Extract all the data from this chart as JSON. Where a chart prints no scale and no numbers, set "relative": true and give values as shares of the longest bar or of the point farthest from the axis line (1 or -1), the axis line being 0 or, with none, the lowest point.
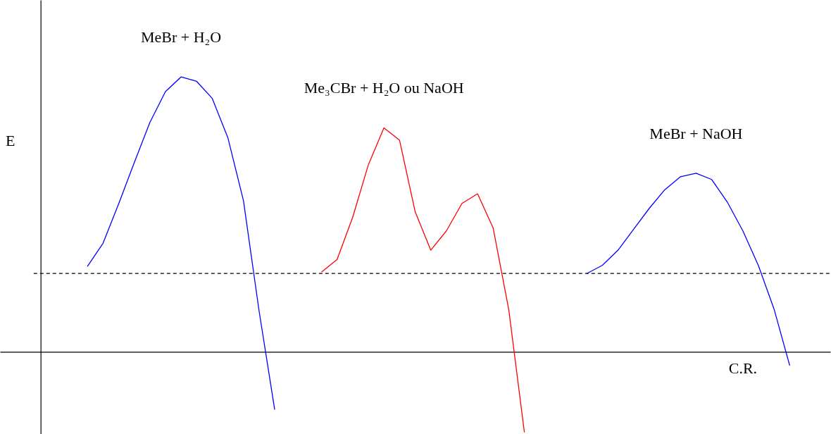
{
  "chart_data": {
    "type": "line",
    "relative": true,
    "xlabel": "C.R.",
    "ylabel": "E",
    "categories": [
      null,
      null,
      null,
      null,
      null,
      null,
      null,
      null,
      null,
      null,
      null,
      null,
      null,
      null,
      null,
      null,
      null,
      null,
      null,
      null,
      null,
      null,
      null,
      null,
      null,
      null,
      null,
      null,
      null,
      null,
      null,
      null,
      null,
      null,
      null,
      null,
      null,
      null,
      null,
      null,
      null,
      null,
      null,
      null,
      null,
      null,
      null,
      null,
      null,
      null,
      null
    ],
    "series": [
      {
        "name": "MeBr + H₂O",
        "color": "#0000ff",
        "values": [
          null,
          null,
          null,
          0.311,
          0.395,
          0.538,
          0.688,
          0.834,
          0.947,
          1.0,
          0.984,
          0.922,
          0.779,
          0.55,
          0.149,
          -0.21,
          null,
          null,
          null,
          null,
          null,
          null,
          null,
          null,
          null,
          null,
          null,
          null,
          null,
          null,
          null,
          null,
          null,
          null,
          null,
          null,
          null,
          null,
          null,
          null,
          null,
          null,
          null,
          null,
          null,
          null,
          null,
          null,
          null,
          null,
          null
        ]
      },
      {
        "name": "Me₃CBr + H₂O ou NaOH",
        "color": "#ff0000",
        "values": [
          null,
          null,
          null,
          null,
          null,
          null,
          null,
          null,
          null,
          null,
          null,
          null,
          null,
          null,
          null,
          null,
          null,
          null,
          0.29,
          0.336,
          0.49,
          0.68,
          0.815,
          0.77,
          0.51,
          0.37,
          0.44,
          0.54,
          0.575,
          0.45,
          0.153,
          -0.293,
          null,
          null,
          null,
          null,
          null,
          null,
          null,
          null,
          null,
          null,
          null,
          null,
          null,
          null,
          null,
          null,
          null,
          null,
          null
        ]
      },
      {
        "name": "MeBr + NaOH",
        "color": "#0000ff",
        "values": [
          null,
          null,
          null,
          null,
          null,
          null,
          null,
          null,
          null,
          null,
          null,
          null,
          null,
          null,
          null,
          null,
          null,
          null,
          null,
          null,
          null,
          null,
          null,
          null,
          null,
          null,
          null,
          null,
          null,
          null,
          null,
          null,
          null,
          null,
          null,
          0.285,
          0.315,
          0.37,
          0.446,
          0.522,
          0.59,
          0.637,
          0.65,
          0.627,
          0.545,
          0.44,
          0.313,
          0.155,
          -0.05,
          null,
          null
        ]
      }
    ],
    "ref_lines": [
      {
        "axis": "y",
        "value": 0.285,
        "color": "#000000",
        "line_style": "dashed"
      }
    ]
  }
}
